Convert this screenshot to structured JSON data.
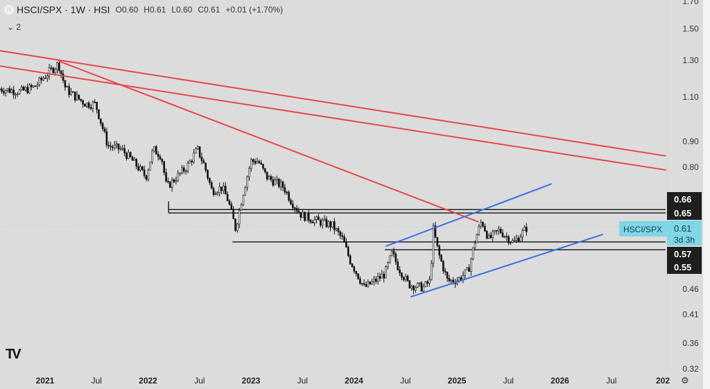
{
  "header": {
    "symbol": "HSCI/SPX · 1W · HSI",
    "logo_letter": "H",
    "open": "O0.60",
    "high": "H0.61",
    "low": "L0.60",
    "close": "C0.61",
    "change": "+0.01 (+1.70%)"
  },
  "indicators": {
    "toggle": "⌄ 2"
  },
  "footer": {
    "logo": "TV",
    "settings_icon": "⚙"
  },
  "chart_data": {
    "type": "candlestick",
    "scale": "log",
    "y_ticks": [
      "1.70",
      "1.50",
      "1.30",
      "1.10",
      "0.90",
      "0.80",
      "0.46",
      "0.41",
      "0.36",
      "0.32"
    ],
    "x_ticks": [
      {
        "t": 2021,
        "label": "2021",
        "major": true
      },
      {
        "t": 2021.5,
        "label": "Jul"
      },
      {
        "t": 2022,
        "label": "2022",
        "major": true
      },
      {
        "t": 2022.5,
        "label": "Jul"
      },
      {
        "t": 2023,
        "label": "2023",
        "major": true
      },
      {
        "t": 2023.5,
        "label": "Jul"
      },
      {
        "t": 2024,
        "label": "2024",
        "major": true
      },
      {
        "t": 2024.5,
        "label": "Jul"
      },
      {
        "t": 2025,
        "label": "2025",
        "major": true
      },
      {
        "t": 2025.5,
        "label": "Jul"
      },
      {
        "t": 2026,
        "label": "2026",
        "major": true
      },
      {
        "t": 2026.5,
        "label": "Jul"
      },
      {
        "t": 2027,
        "label": "202",
        "major": true
      }
    ],
    "price_path": [
      [
        2020.56,
        1.142
      ],
      [
        2020.76,
        1.128
      ],
      [
        2020.9,
        1.153
      ],
      [
        2021.03,
        1.228
      ],
      [
        2021.13,
        1.279
      ],
      [
        2021.2,
        1.142
      ],
      [
        2021.3,
        1.1
      ],
      [
        2021.4,
        1.066
      ],
      [
        2021.49,
        1.066
      ],
      [
        2021.54,
        0.985
      ],
      [
        2021.61,
        0.882
      ],
      [
        2021.74,
        0.868
      ],
      [
        2021.84,
        0.828
      ],
      [
        2021.98,
        0.766
      ],
      [
        2022.05,
        0.868
      ],
      [
        2022.13,
        0.842
      ],
      [
        2022.18,
        0.73
      ],
      [
        2022.28,
        0.766
      ],
      [
        2022.38,
        0.803
      ],
      [
        2022.48,
        0.868
      ],
      [
        2022.55,
        0.803
      ],
      [
        2022.62,
        0.719
      ],
      [
        2022.72,
        0.73
      ],
      [
        2022.78,
        0.686
      ],
      [
        2022.85,
        0.605
      ],
      [
        2022.92,
        0.708
      ],
      [
        2023.0,
        0.823
      ],
      [
        2023.07,
        0.823
      ],
      [
        2023.15,
        0.766
      ],
      [
        2023.32,
        0.73
      ],
      [
        2023.39,
        0.686
      ],
      [
        2023.49,
        0.644
      ],
      [
        2023.63,
        0.628
      ],
      [
        2023.79,
        0.614
      ],
      [
        2023.89,
        0.577
      ],
      [
        2023.96,
        0.525
      ],
      [
        2024.03,
        0.493
      ],
      [
        2024.1,
        0.463
      ],
      [
        2024.2,
        0.477
      ],
      [
        2024.3,
        0.493
      ],
      [
        2024.37,
        0.542
      ],
      [
        2024.43,
        0.508
      ],
      [
        2024.53,
        0.47
      ],
      [
        2024.67,
        0.463
      ],
      [
        2024.74,
        0.477
      ],
      [
        2024.77,
        0.605
      ],
      [
        2024.82,
        0.542
      ],
      [
        2024.91,
        0.477
      ],
      [
        2025.01,
        0.48
      ],
      [
        2025.11,
        0.5
      ],
      [
        2025.18,
        0.577
      ],
      [
        2025.24,
        0.628
      ],
      [
        2025.31,
        0.577
      ],
      [
        2025.41,
        0.601
      ],
      [
        2025.55,
        0.568
      ],
      [
        2025.68,
        0.608
      ]
    ],
    "last_price": {
      "label": "HSCI/SPX",
      "value": "0.61",
      "countdown": "3d 3h",
      "color": "#7ed6e6"
    },
    "horizontal_levels": [
      {
        "value": 0.66,
        "label": "0.66",
        "from": 2022.2
      },
      {
        "value": 0.65,
        "label": "0.65",
        "from": 2022.2
      },
      {
        "value": 0.57,
        "label": "0.57",
        "from": 2022.82
      },
      {
        "value": 0.55,
        "label": "0.55",
        "from": 2024.3
      }
    ],
    "trend_lines": [
      {
        "color": "#e8474c",
        "p1": [
          2020.56,
          1.358
        ],
        "p2": [
          2027.03,
          0.842
        ]
      },
      {
        "color": "#e8474c",
        "p1": [
          2020.56,
          1.267
        ],
        "p2": [
          2027.03,
          0.79
        ]
      },
      {
        "color": "#e8474c",
        "p1": [
          2021.13,
          1.296
        ],
        "p2": [
          2025.21,
          0.624
        ]
      },
      {
        "color": "#3d6ee8",
        "p1": [
          2024.31,
          0.559
        ],
        "p2": [
          2025.92,
          0.742
        ]
      },
      {
        "color": "#3d6ee8",
        "p1": [
          2024.55,
          0.444
        ],
        "p2": [
          2026.42,
          0.59
        ]
      }
    ]
  }
}
